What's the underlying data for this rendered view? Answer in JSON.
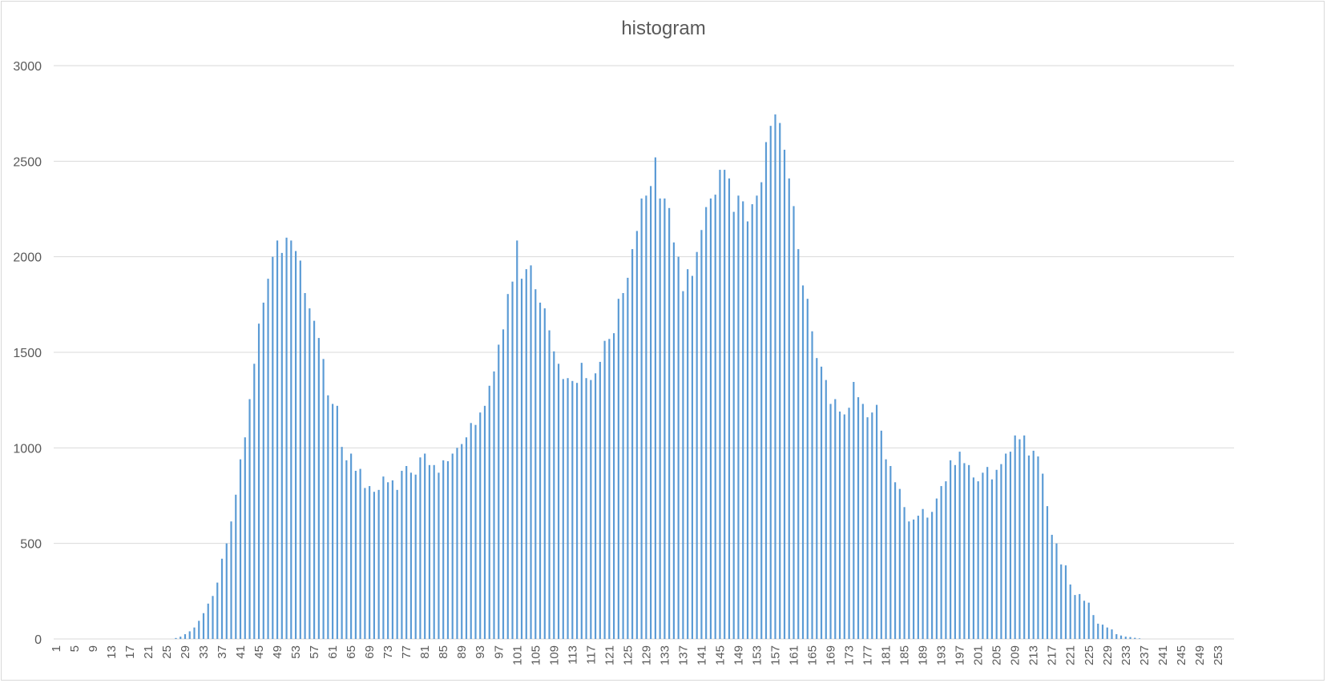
{
  "chart_data": {
    "type": "bar",
    "title": "histogram",
    "xlabel": "",
    "ylabel": "",
    "ylim": [
      0,
      3000
    ],
    "yticks": [
      0,
      500,
      1000,
      1500,
      2000,
      2500,
      3000
    ],
    "grid": true,
    "legend": "none",
    "bar_color": "#5b9bd5",
    "grid_color": "#d9d9d9",
    "text_color": "#595959",
    "x_tick_every": 4,
    "categories": [
      1,
      2,
      3,
      4,
      5,
      6,
      7,
      8,
      9,
      10,
      11,
      12,
      13,
      14,
      15,
      16,
      17,
      18,
      19,
      20,
      21,
      22,
      23,
      24,
      25,
      26,
      27,
      28,
      29,
      30,
      31,
      32,
      33,
      34,
      35,
      36,
      37,
      38,
      39,
      40,
      41,
      42,
      43,
      44,
      45,
      46,
      47,
      48,
      49,
      50,
      51,
      52,
      53,
      54,
      55,
      56,
      57,
      58,
      59,
      60,
      61,
      62,
      63,
      64,
      65,
      66,
      67,
      68,
      69,
      70,
      71,
      72,
      73,
      74,
      75,
      76,
      77,
      78,
      79,
      80,
      81,
      82,
      83,
      84,
      85,
      86,
      87,
      88,
      89,
      90,
      91,
      92,
      93,
      94,
      95,
      96,
      97,
      98,
      99,
      100,
      101,
      102,
      103,
      104,
      105,
      106,
      107,
      108,
      109,
      110,
      111,
      112,
      113,
      114,
      115,
      116,
      117,
      118,
      119,
      120,
      121,
      122,
      123,
      124,
      125,
      126,
      127,
      128,
      129,
      130,
      131,
      132,
      133,
      134,
      135,
      136,
      137,
      138,
      139,
      140,
      141,
      142,
      143,
      144,
      145,
      146,
      147,
      148,
      149,
      150,
      151,
      152,
      153,
      154,
      155,
      156,
      157,
      158,
      159,
      160,
      161,
      162,
      163,
      164,
      165,
      166,
      167,
      168,
      169,
      170,
      171,
      172,
      173,
      174,
      175,
      176,
      177,
      178,
      179,
      180,
      181,
      182,
      183,
      184,
      185,
      186,
      187,
      188,
      189,
      190,
      191,
      192,
      193,
      194,
      195,
      196,
      197,
      198,
      199,
      200,
      201,
      202,
      203,
      204,
      205,
      206,
      207,
      208,
      209,
      210,
      211,
      212,
      213,
      214,
      215,
      216,
      217,
      218,
      219,
      220,
      221,
      222,
      223,
      224,
      225,
      226,
      227,
      228,
      229,
      230,
      231,
      232,
      233,
      234,
      235,
      236,
      237,
      238,
      239,
      240,
      241,
      242,
      243,
      244,
      245,
      246,
      247,
      248,
      249,
      250,
      251,
      252,
      253,
      254,
      255,
      256
    ],
    "values": [
      0,
      0,
      0,
      0,
      0,
      0,
      0,
      0,
      0,
      0,
      0,
      0,
      0,
      0,
      0,
      0,
      0,
      0,
      0,
      0,
      0,
      0,
      0,
      0,
      0,
      0,
      5,
      12,
      25,
      40,
      60,
      95,
      135,
      185,
      225,
      295,
      420,
      500,
      615,
      755,
      940,
      1055,
      1255,
      1440,
      1650,
      1760,
      1885,
      2000,
      2085,
      2020,
      2100,
      2085,
      2030,
      1980,
      1810,
      1730,
      1665,
      1575,
      1465,
      1275,
      1230,
      1220,
      1005,
      935,
      970,
      880,
      890,
      790,
      800,
      770,
      780,
      850,
      820,
      830,
      780,
      880,
      905,
      870,
      860,
      950,
      970,
      910,
      910,
      870,
      935,
      930,
      970,
      1000,
      1020,
      1055,
      1130,
      1120,
      1185,
      1220,
      1325,
      1400,
      1540,
      1620,
      1805,
      1870,
      2085,
      1885,
      1935,
      1955,
      1830,
      1760,
      1730,
      1615,
      1505,
      1440,
      1360,
      1365,
      1350,
      1340,
      1445,
      1365,
      1355,
      1390,
      1450,
      1560,
      1570,
      1600,
      1780,
      1810,
      1890,
      2040,
      2135,
      2305,
      2320,
      2370,
      2520,
      2305,
      2305,
      2255,
      2075,
      2000,
      1820,
      1935,
      1900,
      2025,
      2140,
      2260,
      2305,
      2325,
      2455,
      2455,
      2410,
      2235,
      2320,
      2290,
      2185,
      2275,
      2320,
      2390,
      2600,
      2685,
      2745,
      2700,
      2560,
      2410,
      2265,
      2040,
      1850,
      1780,
      1610,
      1470,
      1425,
      1355,
      1230,
      1255,
      1190,
      1175,
      1210,
      1345,
      1265,
      1230,
      1160,
      1185,
      1225,
      1090,
      940,
      905,
      820,
      785,
      690,
      615,
      625,
      645,
      680,
      635,
      665,
      735,
      800,
      825,
      935,
      910,
      980,
      920,
      910,
      845,
      825,
      870,
      900,
      835,
      885,
      915,
      970,
      980,
      1065,
      1045,
      1065,
      960,
      985,
      955,
      865,
      695,
      545,
      500,
      390,
      385,
      285,
      230,
      235,
      200,
      190,
      125,
      80,
      75,
      60,
      50,
      25,
      18,
      12,
      10,
      6,
      3,
      0,
      0,
      0,
      0,
      0,
      0,
      0,
      0,
      0,
      0,
      0,
      0,
      0,
      0,
      0,
      0,
      0,
      0,
      0,
      0
    ]
  }
}
